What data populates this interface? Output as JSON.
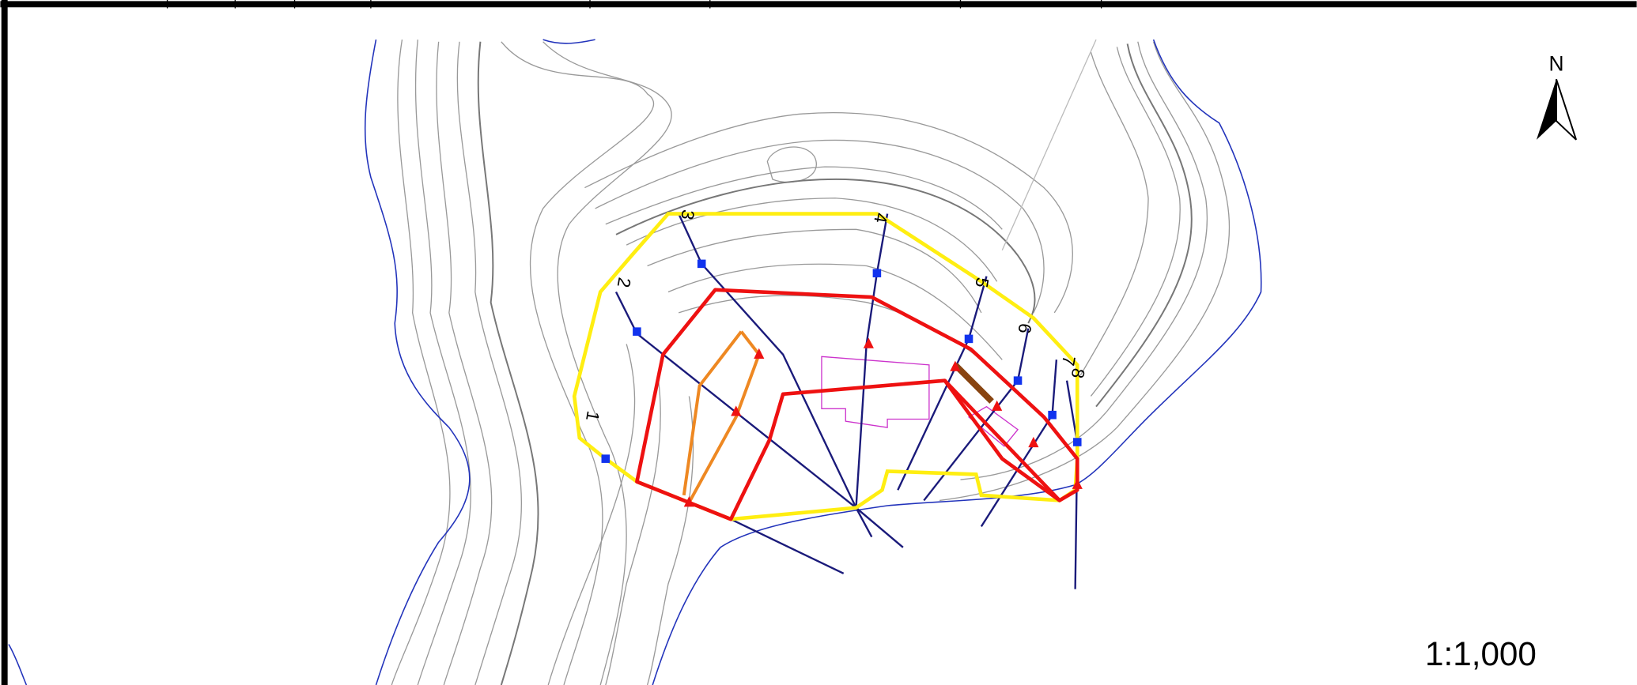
{
  "north_label": "N",
  "scale": "1:1,000",
  "sections": [
    "1",
    "2",
    "3",
    "4",
    "5",
    "6",
    "7",
    "8"
  ]
}
